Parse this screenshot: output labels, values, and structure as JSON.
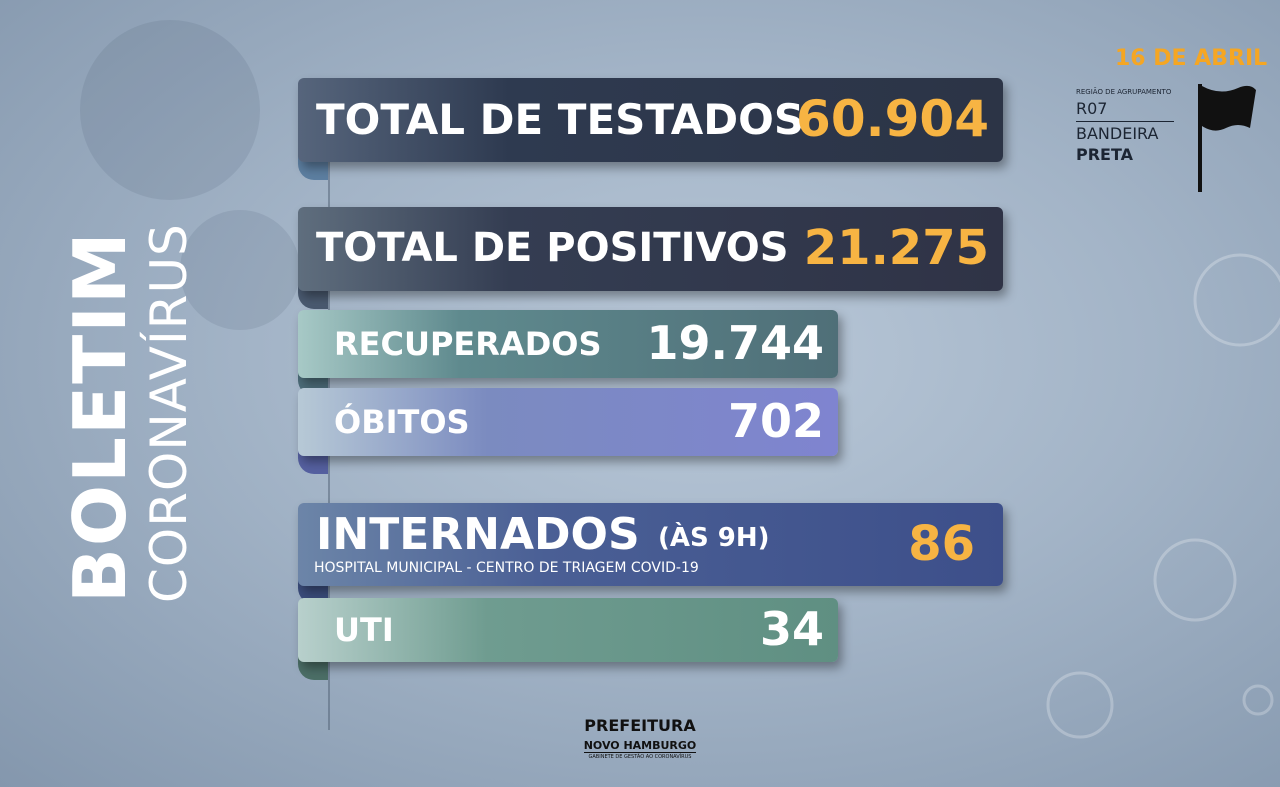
{
  "header": {
    "title": "BOLETIM",
    "subtitle": "CORONAVÍRUS",
    "date": "16 DE ABRIL"
  },
  "region": {
    "label": "REGIÃO DE AGRUPAMENTO",
    "code": "R07",
    "flag_line1": "BANDEIRA",
    "flag_line2": "PRETA"
  },
  "stats": [
    {
      "label": "TOTAL DE TESTADOS",
      "value": "60.904"
    },
    {
      "label": "TOTAL DE POSITIVOS",
      "value": "21.275"
    },
    {
      "label": "RECUPERADOS",
      "value": "19.744"
    },
    {
      "label": "ÓBITOS",
      "value": "702"
    },
    {
      "label": "INTERNADOS",
      "note": "(ÀS 9H)",
      "detail": "HOSPITAL MUNICIPAL - CENTRO DE TRIAGEM COVID-19",
      "value": "86"
    },
    {
      "label": "UTI",
      "value": "34"
    }
  ],
  "footer": {
    "org": "PREFEITURA",
    "city": "NOVO HAMBURGO",
    "office": "GABINETE DE GESTÃO AO CORONAVÍRUS"
  }
}
